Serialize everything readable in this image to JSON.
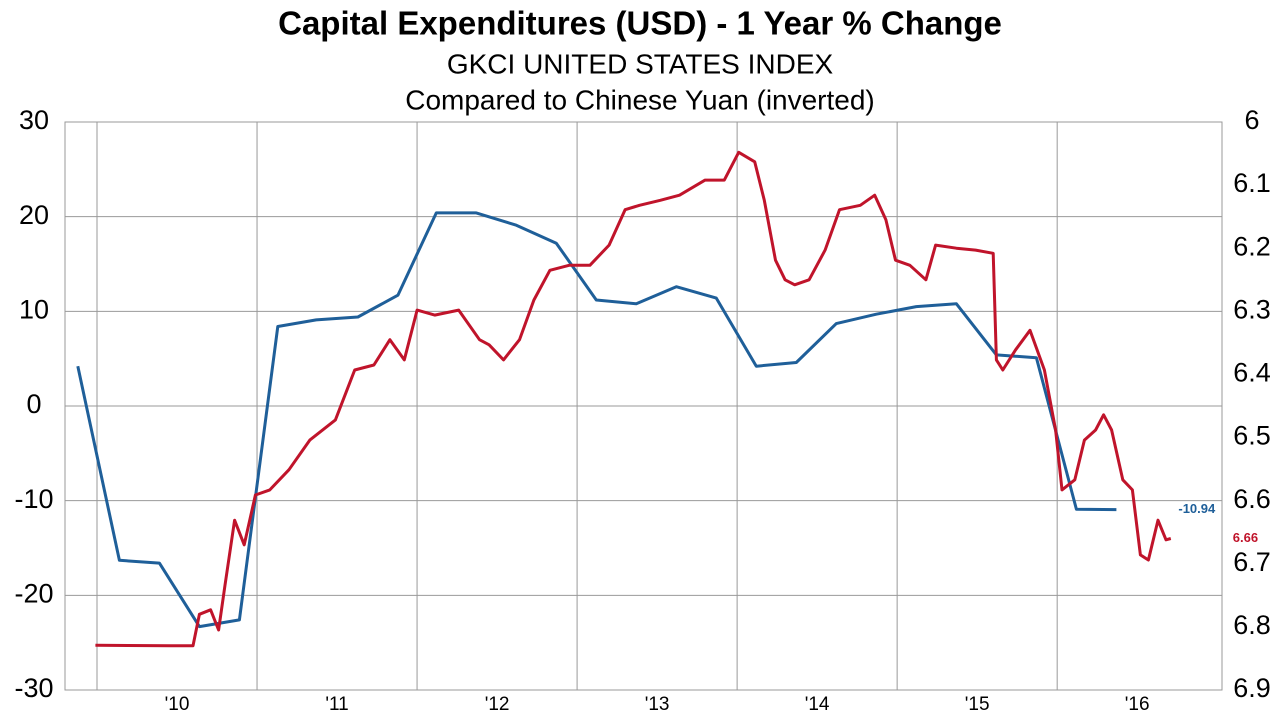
{
  "chart_data": {
    "type": "line",
    "title": "Capital Expenditures (USD) - 1 Year % Change",
    "subtitle": "GKCI UNITED STATES INDEX",
    "subtitle2": "Compared to Chinese Yuan (inverted)",
    "xlim": [
      2009.8,
      2017.03
    ],
    "xticks": [
      {
        "value": 2010,
        "label": "'10"
      },
      {
        "value": 2011,
        "label": "'11"
      },
      {
        "value": 2012,
        "label": "'12"
      },
      {
        "value": 2013,
        "label": "'13"
      },
      {
        "value": 2014,
        "label": "'14"
      },
      {
        "value": 2015,
        "label": "'15"
      },
      {
        "value": 2016,
        "label": "'16"
      }
    ],
    "ylim": [
      -30,
      30
    ],
    "yticks": [
      -30,
      -20,
      -10,
      0,
      10,
      20,
      30
    ],
    "y2lim": [
      6.9,
      6
    ],
    "y2ticks": [
      6.9,
      6.8,
      6.7,
      6.6,
      6.5,
      6.4,
      6.3,
      6.2,
      6.1,
      6
    ],
    "grid": true,
    "series": [
      {
        "color": "#1f5f99",
        "x": [
          2009.88,
          2010.14,
          2010.39,
          2010.64,
          2010.89,
          2011.13,
          2011.37,
          2011.63,
          2011.88,
          2012.12,
          2012.37,
          2012.62,
          2012.87,
          2013.12,
          2013.37,
          2013.62,
          2013.87,
          2014.12,
          2014.37,
          2014.62,
          2014.87,
          2015.12,
          2015.37,
          2015.62,
          2015.87,
          2016.12,
          2016.37
        ],
        "values": [
          4.2,
          -16.3,
          -16.6,
          -23.3,
          -22.6,
          8.4,
          9.1,
          9.4,
          11.7,
          20.4,
          20.4,
          19.1,
          17.2,
          11.2,
          10.8,
          12.6,
          11.4,
          4.2,
          4.6,
          8.7,
          9.7,
          10.5,
          10.8,
          5.4,
          5.1,
          -10.9,
          -10.94
        ]
      },
      {
        "color": "#c0142b",
        "axis": "y2",
        "x": [
          2009.99,
          2010.46,
          2010.6,
          2010.64,
          2010.71,
          2010.76,
          2010.8,
          2010.86,
          2010.92,
          2010.99,
          2011.08,
          2011.2,
          2011.33,
          2011.49,
          2011.61,
          2011.73,
          2011.83,
          2011.92,
          2012.0,
          2012.11,
          2012.26,
          2012.39,
          2012.45,
          2012.54,
          2012.64,
          2012.73,
          2012.83,
          2012.95,
          2013.08,
          2013.2,
          2013.3,
          2013.39,
          2013.52,
          2013.64,
          2013.8,
          2013.92,
          2014.01,
          2014.11,
          2014.17,
          2014.24,
          2014.3,
          2014.36,
          2014.45,
          2014.55,
          2014.64,
          2014.77,
          2014.86,
          2014.93,
          2014.99,
          2015.08,
          2015.18,
          2015.24,
          2015.37,
          2015.49,
          2015.6,
          2015.62,
          2015.66,
          2015.74,
          2015.83,
          2015.92,
          2015.99,
          2016.03,
          2016.11,
          2016.17,
          2016.24,
          2016.29,
          2016.34,
          2016.41,
          2016.47,
          2016.52,
          2016.57,
          2016.63,
          2016.68,
          2016.71
        ],
        "values": [
          6.829,
          6.83,
          6.83,
          6.78,
          6.773,
          6.805,
          6.734,
          6.631,
          6.67,
          6.591,
          6.583,
          6.551,
          6.504,
          6.472,
          6.393,
          6.385,
          6.345,
          6.377,
          6.298,
          6.306,
          6.298,
          6.345,
          6.353,
          6.377,
          6.345,
          6.282,
          6.235,
          6.227,
          6.227,
          6.195,
          6.139,
          6.132,
          6.124,
          6.116,
          6.092,
          6.092,
          6.048,
          6.063,
          6.124,
          6.219,
          6.25,
          6.258,
          6.25,
          6.203,
          6.139,
          6.132,
          6.116,
          6.155,
          6.219,
          6.227,
          6.25,
          6.195,
          6.2,
          6.203,
          6.208,
          6.377,
          6.393,
          6.361,
          6.33,
          6.393,
          6.488,
          6.583,
          6.567,
          6.504,
          6.488,
          6.464,
          6.488,
          6.567,
          6.583,
          6.686,
          6.694,
          6.631,
          6.662,
          6.66
        ]
      }
    ]
  }
}
